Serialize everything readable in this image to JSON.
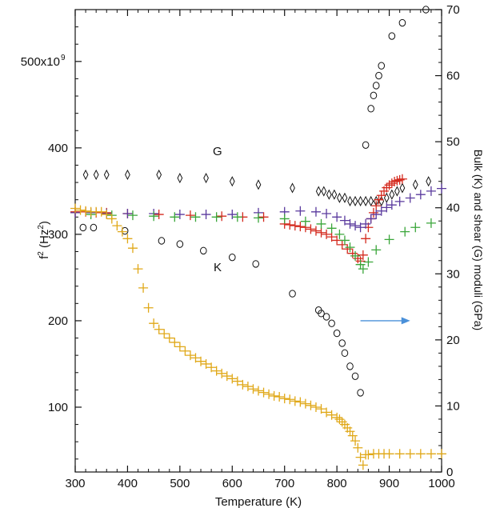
{
  "chart_data": {
    "type": "scatter",
    "xlabel": "Temperature (K)",
    "ylabel_left": "f² (Hz²)",
    "ylabel_left_base": "f",
    "ylabel_left_sup": "2",
    "ylabel_left_unit": " (Hz",
    "ylabel_left_unit_sup": "2",
    "ylabel_left_close": ")",
    "ylabel_right": "Bulk (K) and shear (G) moduli (GPa)",
    "xlim": [
      300,
      1000
    ],
    "ylim_left": [
      25,
      560
    ],
    "ylim_right": [
      0,
      70
    ],
    "x_ticks": [
      300,
      400,
      500,
      600,
      700,
      800,
      900,
      1000
    ],
    "y_left_ticks": [
      100,
      200,
      300,
      400,
      500
    ],
    "y_left_tick_labels": [
      "100",
      "200",
      "300",
      "400",
      "500x10"
    ],
    "y_left_top_exponent": "9",
    "y_right_ticks": [
      0,
      10,
      20,
      30,
      40,
      50,
      60,
      70
    ],
    "annotations": {
      "G": "G",
      "K": "K"
    },
    "colors": {
      "black": "#111111",
      "red": "#d42a1e",
      "purple": "#5a3a9e",
      "green": "#3aa63a",
      "gold": "#e0a818",
      "arrow": "#4a90d9"
    },
    "arrow": {
      "x_from": 845,
      "x_to": 940,
      "y_left": 200
    },
    "series": [
      {
        "axis": "right",
        "marker": "diamond",
        "color": "black",
        "points": [
          [
            320,
            45
          ],
          [
            340,
            45
          ],
          [
            360,
            45
          ],
          [
            400,
            45
          ],
          [
            460,
            45
          ],
          [
            500,
            44.5
          ],
          [
            550,
            44.5
          ],
          [
            600,
            44
          ],
          [
            650,
            43.5
          ],
          [
            715,
            43
          ],
          [
            765,
            42.5
          ],
          [
            775,
            42.5
          ],
          [
            785,
            42
          ],
          [
            795,
            42
          ],
          [
            805,
            41.5
          ],
          [
            815,
            41.5
          ],
          [
            825,
            41
          ],
          [
            835,
            41
          ],
          [
            845,
            41
          ],
          [
            855,
            41
          ],
          [
            865,
            41
          ],
          [
            875,
            41
          ],
          [
            885,
            41
          ],
          [
            895,
            41.5
          ],
          [
            905,
            42
          ],
          [
            915,
            42.5
          ],
          [
            925,
            43
          ],
          [
            950,
            43.5
          ],
          [
            975,
            44
          ]
        ]
      },
      {
        "axis": "right",
        "marker": "circle",
        "color": "black",
        "points": [
          [
            315,
            37
          ],
          [
            335,
            37
          ],
          [
            395,
            36.5
          ],
          [
            465,
            35
          ],
          [
            500,
            34.5
          ],
          [
            545,
            33.5
          ],
          [
            600,
            32.5
          ],
          [
            645,
            31.5
          ],
          [
            715,
            27
          ],
          [
            765,
            24.5
          ],
          [
            770,
            24
          ],
          [
            780,
            23.5
          ],
          [
            790,
            22.5
          ],
          [
            800,
            21
          ],
          [
            810,
            19.5
          ],
          [
            815,
            18
          ],
          [
            825,
            16
          ],
          [
            835,
            14.5
          ],
          [
            845,
            12
          ],
          [
            855,
            49.5
          ],
          [
            865,
            55
          ],
          [
            870,
            57
          ],
          [
            875,
            58.5
          ],
          [
            880,
            60
          ],
          [
            885,
            61.5
          ],
          [
            905,
            66
          ],
          [
            925,
            68
          ],
          [
            970,
            70
          ]
        ]
      },
      {
        "axis": "left",
        "marker": "plus",
        "color": "red",
        "points": [
          [
            300,
            326
          ],
          [
            320,
            326
          ],
          [
            340,
            325
          ],
          [
            360,
            325
          ],
          [
            400,
            324
          ],
          [
            460,
            323
          ],
          [
            520,
            322
          ],
          [
            580,
            321
          ],
          [
            620,
            320
          ],
          [
            660,
            320
          ],
          [
            700,
            312
          ],
          [
            710,
            311
          ],
          [
            720,
            310
          ],
          [
            730,
            309
          ],
          [
            740,
            308
          ],
          [
            750,
            306
          ],
          [
            760,
            304
          ],
          [
            770,
            302
          ],
          [
            780,
            300
          ],
          [
            790,
            297
          ],
          [
            800,
            293
          ],
          [
            810,
            288
          ],
          [
            820,
            283
          ],
          [
            830,
            278
          ],
          [
            840,
            272
          ],
          [
            845,
            269
          ],
          [
            850,
            276
          ],
          [
            855,
            295
          ],
          [
            860,
            308
          ],
          [
            865,
            318
          ],
          [
            870,
            325
          ],
          [
            875,
            333
          ],
          [
            880,
            340
          ],
          [
            885,
            345
          ],
          [
            890,
            350
          ],
          [
            895,
            354
          ],
          [
            900,
            357
          ],
          [
            905,
            359
          ],
          [
            910,
            361
          ],
          [
            915,
            362
          ],
          [
            920,
            363
          ],
          [
            925,
            364
          ]
        ]
      },
      {
        "axis": "left",
        "marker": "plus",
        "color": "purple",
        "points": [
          [
            300,
            325
          ],
          [
            330,
            325
          ],
          [
            360,
            324
          ],
          [
            400,
            324
          ],
          [
            450,
            324
          ],
          [
            500,
            323
          ],
          [
            550,
            323
          ],
          [
            600,
            323
          ],
          [
            650,
            325
          ],
          [
            700,
            326
          ],
          [
            730,
            327
          ],
          [
            760,
            326
          ],
          [
            780,
            324
          ],
          [
            800,
            320
          ],
          [
            815,
            316
          ],
          [
            825,
            312
          ],
          [
            835,
            310
          ],
          [
            845,
            308
          ],
          [
            855,
            312
          ],
          [
            865,
            318
          ],
          [
            875,
            323
          ],
          [
            885,
            327
          ],
          [
            895,
            331
          ],
          [
            905,
            334
          ],
          [
            920,
            338
          ],
          [
            940,
            342
          ],
          [
            960,
            346
          ],
          [
            980,
            350
          ],
          [
            1000,
            353
          ]
        ]
      },
      {
        "axis": "left",
        "marker": "plus",
        "color": "green",
        "points": [
          [
            330,
            323
          ],
          [
            370,
            322
          ],
          [
            410,
            322
          ],
          [
            450,
            321
          ],
          [
            490,
            320
          ],
          [
            530,
            320
          ],
          [
            570,
            320
          ],
          [
            610,
            320
          ],
          [
            650,
            319
          ],
          [
            700,
            318
          ],
          [
            740,
            315
          ],
          [
            770,
            312
          ],
          [
            790,
            307
          ],
          [
            805,
            300
          ],
          [
            815,
            293
          ],
          [
            825,
            285
          ],
          [
            835,
            275
          ],
          [
            845,
            265
          ],
          [
            850,
            260
          ],
          [
            860,
            268
          ],
          [
            875,
            282
          ],
          [
            900,
            294
          ],
          [
            930,
            303
          ],
          [
            950,
            308
          ],
          [
            980,
            313
          ]
        ]
      },
      {
        "axis": "left",
        "marker": "plus",
        "color": "gold",
        "points": [
          [
            300,
            330
          ],
          [
            310,
            328
          ],
          [
            320,
            327
          ],
          [
            330,
            326
          ],
          [
            340,
            326
          ],
          [
            350,
            326
          ],
          [
            360,
            323
          ],
          [
            370,
            318
          ],
          [
            380,
            310
          ],
          [
            390,
            303
          ],
          [
            400,
            295
          ],
          [
            410,
            284
          ],
          [
            420,
            260
          ],
          [
            430,
            238
          ],
          [
            440,
            215
          ],
          [
            450,
            197
          ],
          [
            460,
            190
          ],
          [
            470,
            185
          ],
          [
            480,
            180
          ],
          [
            490,
            175
          ],
          [
            500,
            170
          ],
          [
            510,
            165
          ],
          [
            520,
            160
          ],
          [
            530,
            157
          ],
          [
            540,
            153
          ],
          [
            550,
            150
          ],
          [
            560,
            146
          ],
          [
            570,
            142
          ],
          [
            580,
            139
          ],
          [
            590,
            136
          ],
          [
            600,
            133
          ],
          [
            610,
            130
          ],
          [
            620,
            126
          ],
          [
            630,
            124
          ],
          [
            640,
            121
          ],
          [
            650,
            119
          ],
          [
            660,
            117
          ],
          [
            670,
            115
          ],
          [
            680,
            113
          ],
          [
            690,
            112
          ],
          [
            700,
            110
          ],
          [
            710,
            109
          ],
          [
            720,
            107
          ],
          [
            730,
            106
          ],
          [
            740,
            104
          ],
          [
            750,
            102
          ],
          [
            760,
            100
          ],
          [
            770,
            98
          ],
          [
            780,
            94
          ],
          [
            790,
            91
          ],
          [
            800,
            88
          ],
          [
            805,
            86
          ],
          [
            810,
            83
          ],
          [
            815,
            80
          ],
          [
            820,
            76
          ],
          [
            825,
            72
          ],
          [
            830,
            67
          ],
          [
            835,
            61
          ],
          [
            840,
            53
          ],
          [
            845,
            42
          ],
          [
            850,
            33
          ],
          [
            855,
            45
          ],
          [
            860,
            45
          ],
          [
            870,
            46
          ],
          [
            880,
            46
          ],
          [
            890,
            46
          ],
          [
            900,
            46
          ],
          [
            920,
            46
          ],
          [
            940,
            46
          ],
          [
            960,
            46
          ],
          [
            980,
            46
          ],
          [
            1000,
            46
          ]
        ]
      }
    ]
  }
}
